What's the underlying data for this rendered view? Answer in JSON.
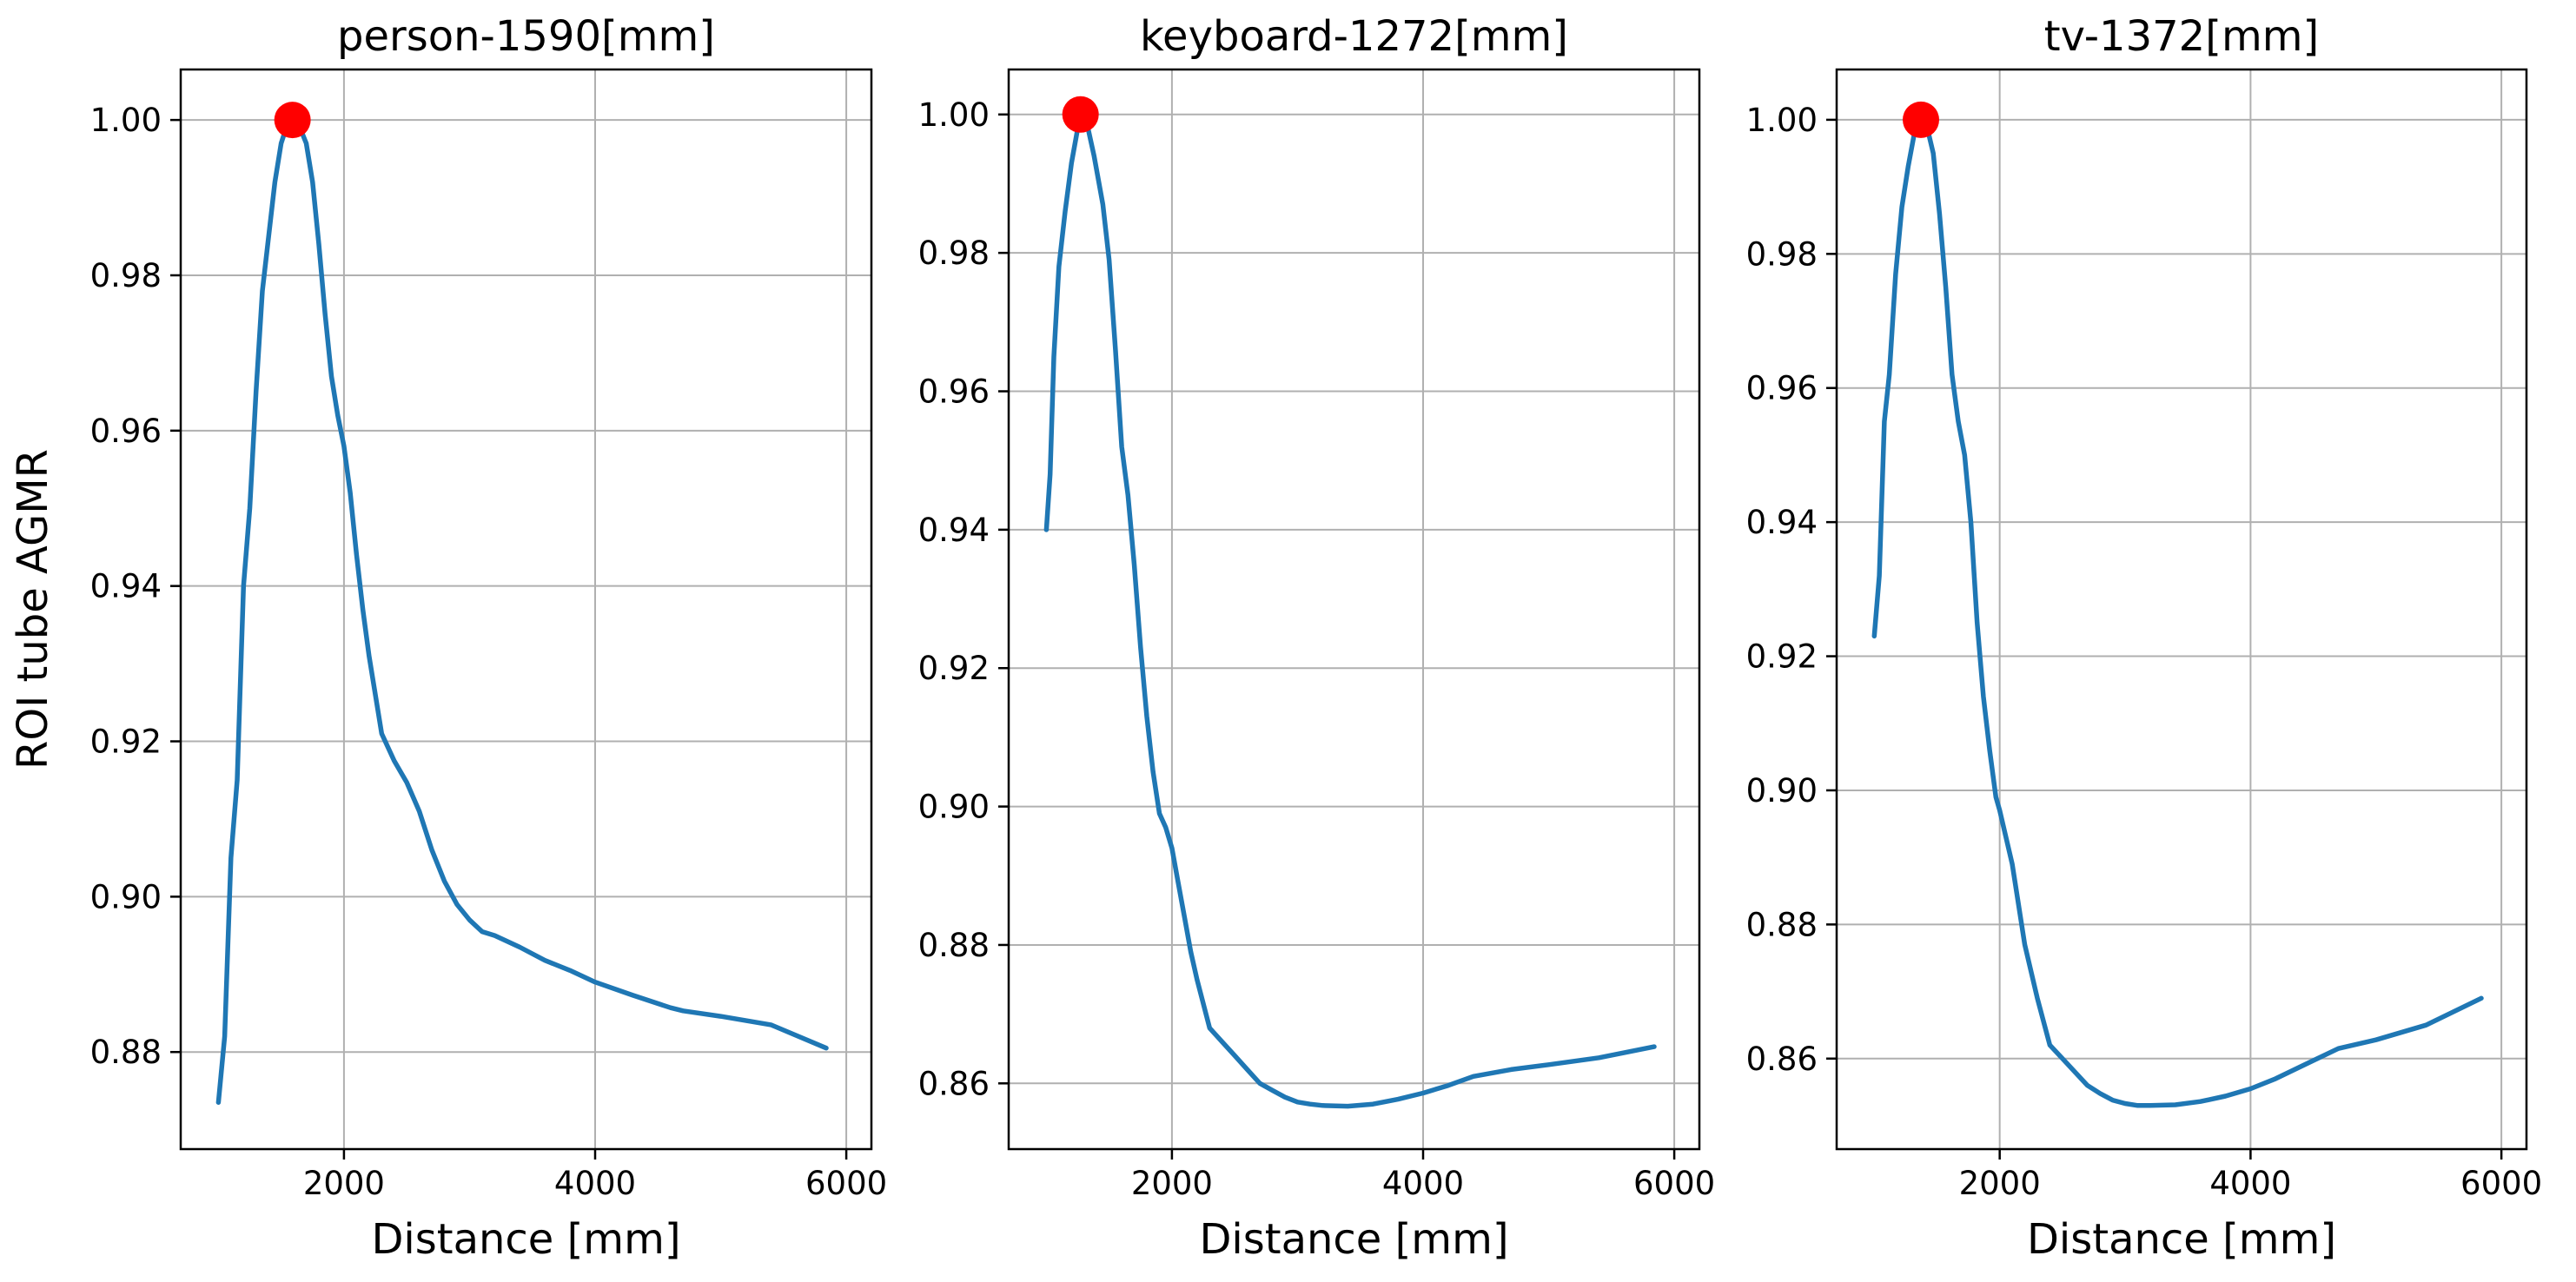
{
  "chart_data": [
    {
      "type": "line",
      "title": "person-1590[mm]",
      "xlabel": "Distance [mm]",
      "ylabel": "ROI tube AGMR",
      "xlim": [
        700,
        6200
      ],
      "ylim": [
        0.8675,
        1.0065
      ],
      "xticks": [
        2000,
        4000,
        6000
      ],
      "xtick_labels": [
        "2000",
        "4000",
        "6000"
      ],
      "yticks": [
        0.88,
        0.9,
        0.92,
        0.94,
        0.96,
        0.98,
        1.0
      ],
      "ytick_labels": [
        "0.88",
        "0.90",
        "0.92",
        "0.94",
        "0.96",
        "0.98",
        "1.00"
      ],
      "grid": true,
      "color": "#1f77b4",
      "marker_color": "#ff0000",
      "peak": {
        "x": 1590,
        "y": 1.0
      },
      "series": [
        {
          "x": [
            1000,
            1050,
            1100,
            1150,
            1200,
            1250,
            1300,
            1350,
            1400,
            1450,
            1500,
            1550,
            1600,
            1650,
            1700,
            1750,
            1800,
            1850,
            1900,
            1950,
            2000,
            2050,
            2100,
            2150,
            2200,
            2300,
            2400,
            2500,
            2600,
            2700,
            2800,
            2900,
            3000,
            3100,
            3200,
            3400,
            3600,
            3800,
            4000,
            4300,
            4600,
            4700,
            5000,
            5400,
            5840
          ],
          "y": [
            0.8735,
            0.882,
            0.905,
            0.915,
            0.94,
            0.95,
            0.965,
            0.978,
            0.985,
            0.992,
            0.997,
            0.9995,
            1.0,
            0.999,
            0.997,
            0.992,
            0.984,
            0.975,
            0.967,
            0.962,
            0.958,
            0.952,
            0.944,
            0.937,
            0.931,
            0.921,
            0.9175,
            0.9147,
            0.911,
            0.906,
            0.902,
            0.899,
            0.897,
            0.8955,
            0.895,
            0.8935,
            0.8918,
            0.8905,
            0.889,
            0.8873,
            0.8857,
            0.8853,
            0.8846,
            0.8835,
            0.8805
          ]
        }
      ]
    },
    {
      "type": "line",
      "title": "keyboard-1272[mm]",
      "xlabel": "Distance [mm]",
      "ylabel": "",
      "xlim": [
        700,
        6200
      ],
      "ylim": [
        0.8505,
        1.0065
      ],
      "xticks": [
        2000,
        4000,
        6000
      ],
      "xtick_labels": [
        "2000",
        "4000",
        "6000"
      ],
      "yticks": [
        0.86,
        0.88,
        0.9,
        0.92,
        0.94,
        0.96,
        0.98,
        1.0
      ],
      "ytick_labels": [
        "0.86",
        "0.88",
        "0.90",
        "0.92",
        "0.94",
        "0.96",
        "0.98",
        "1.00"
      ],
      "grid": true,
      "color": "#1f77b4",
      "marker_color": "#ff0000",
      "peak": {
        "x": 1272,
        "y": 1.0
      },
      "series": [
        {
          "x": [
            1000,
            1030,
            1060,
            1100,
            1150,
            1200,
            1250,
            1272,
            1320,
            1380,
            1450,
            1500,
            1550,
            1600,
            1650,
            1700,
            1750,
            1800,
            1850,
            1900,
            1950,
            2000,
            2050,
            2100,
            2150,
            2200,
            2300,
            2400,
            2500,
            2600,
            2700,
            2800,
            2900,
            3000,
            3100,
            3200,
            3400,
            3600,
            3800,
            4000,
            4200,
            4400,
            4700,
            5000,
            5400,
            5840
          ],
          "y": [
            0.94,
            0.948,
            0.965,
            0.978,
            0.986,
            0.993,
            0.998,
            1.0,
            0.999,
            0.994,
            0.987,
            0.979,
            0.966,
            0.952,
            0.945,
            0.935,
            0.923,
            0.913,
            0.905,
            0.899,
            0.897,
            0.894,
            0.889,
            0.884,
            0.879,
            0.875,
            0.868,
            0.866,
            0.864,
            0.862,
            0.86,
            0.859,
            0.858,
            0.8573,
            0.857,
            0.8568,
            0.8567,
            0.857,
            0.8577,
            0.8586,
            0.8597,
            0.861,
            0.862,
            0.8627,
            0.8637,
            0.8653
          ]
        }
      ]
    },
    {
      "type": "line",
      "title": "tv-1372[mm]",
      "xlabel": "Distance [mm]",
      "ylabel": "",
      "xlim": [
        700,
        6200
      ],
      "ylim": [
        0.8465,
        1.0075
      ],
      "xticks": [
        2000,
        4000,
        6000
      ],
      "xtick_labels": [
        "2000",
        "4000",
        "6000"
      ],
      "yticks": [
        0.86,
        0.88,
        0.9,
        0.92,
        0.94,
        0.96,
        0.98,
        1.0
      ],
      "ytick_labels": [
        "0.86",
        "0.88",
        "0.90",
        "0.92",
        "0.94",
        "0.96",
        "0.98",
        "1.00"
      ],
      "grid": true,
      "color": "#1f77b4",
      "marker_color": "#ff0000",
      "peak": {
        "x": 1372,
        "y": 1.0
      },
      "series": [
        {
          "x": [
            1000,
            1040,
            1080,
            1120,
            1170,
            1220,
            1270,
            1320,
            1372,
            1420,
            1470,
            1520,
            1570,
            1620,
            1670,
            1720,
            1770,
            1820,
            1870,
            1920,
            1970,
            2000,
            2050,
            2100,
            2150,
            2200,
            2300,
            2400,
            2500,
            2600,
            2700,
            2800,
            2900,
            3000,
            3100,
            3200,
            3400,
            3600,
            3800,
            4000,
            4200,
            4400,
            4700,
            5000,
            5400,
            5840
          ],
          "y": [
            0.923,
            0.932,
            0.955,
            0.962,
            0.977,
            0.987,
            0.993,
            0.998,
            1.0,
            0.999,
            0.995,
            0.986,
            0.975,
            0.962,
            0.955,
            0.95,
            0.94,
            0.925,
            0.914,
            0.906,
            0.899,
            0.897,
            0.893,
            0.889,
            0.883,
            0.877,
            0.869,
            0.862,
            0.86,
            0.858,
            0.856,
            0.8548,
            0.8538,
            0.8533,
            0.853,
            0.853,
            0.8531,
            0.8536,
            0.8544,
            0.8555,
            0.857,
            0.8588,
            0.8615,
            0.8628,
            0.865,
            0.869
          ]
        }
      ]
    }
  ]
}
